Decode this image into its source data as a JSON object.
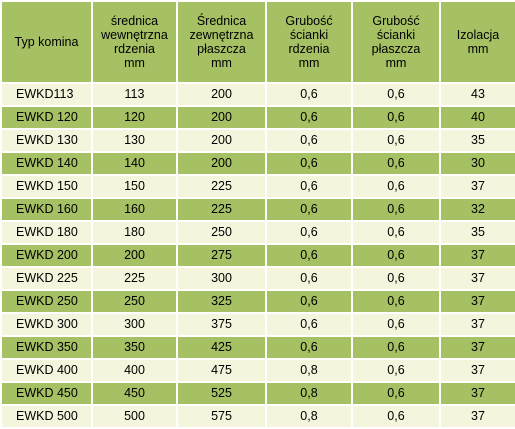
{
  "table": {
    "headers": [
      [
        "Typ komina"
      ],
      [
        "średnica",
        "wewnętrzna",
        "rdzenia",
        "mm"
      ],
      [
        "Średnica",
        "zewnętrzna",
        "płaszcza",
        "mm"
      ],
      [
        "Grubość",
        "ścianki",
        "rdzenia",
        "mm"
      ],
      [
        "Grubość",
        "ścianki",
        "płaszcza",
        "mm"
      ],
      [
        "Izolacja",
        "mm"
      ]
    ],
    "rows": [
      [
        "EWKD113",
        "113",
        "200",
        "0,6",
        "0,6",
        "43"
      ],
      [
        "EWKD 120",
        "120",
        "200",
        "0,6",
        "0,6",
        "40"
      ],
      [
        "EWKD 130",
        "130",
        "200",
        "0,6",
        "0,6",
        "35"
      ],
      [
        "EWKD 140",
        "140",
        "200",
        "0,6",
        "0,6",
        "30"
      ],
      [
        "EWKD 150",
        "150",
        "225",
        "0,6",
        "0,6",
        "37"
      ],
      [
        "EWKD 160",
        "160",
        "225",
        "0,6",
        "0,6",
        "32"
      ],
      [
        "EWKD 180",
        "180",
        "250",
        "0,6",
        "0,6",
        "35"
      ],
      [
        "EWKD 200",
        "200",
        "275",
        "0,6",
        "0,6",
        "37"
      ],
      [
        "EWKD 225",
        "225",
        "300",
        "0,6",
        "0,6",
        "37"
      ],
      [
        "EWKD 250",
        "250",
        "325",
        "0,6",
        "0,6",
        "37"
      ],
      [
        "EWKD 300",
        "300",
        "375",
        "0,6",
        "0,6",
        "37"
      ],
      [
        "EWKD 350",
        "350",
        "425",
        "0,6",
        "0,6",
        "37"
      ],
      [
        "EWKD 400",
        "400",
        "475",
        "0,8",
        "0,6",
        "37"
      ],
      [
        "EWKD 450",
        "450",
        "525",
        "0,8",
        "0,6",
        "37"
      ],
      [
        "EWKD 500",
        "500",
        "575",
        "0,8",
        "0,6",
        "37"
      ]
    ]
  },
  "colors": {
    "header_background": "#a6c064",
    "row_light": "#f4f5dc",
    "row_dark": "#a6c064",
    "grid_lines": "#ffffff"
  }
}
